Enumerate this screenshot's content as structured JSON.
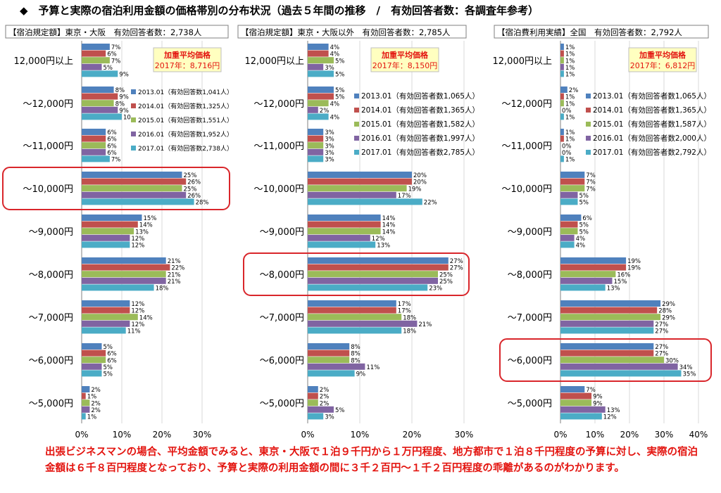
{
  "title": "◆　予算と実際の宿泊利用金額の価格帯別の分布状況（過去５年間の推移　/　有効回答者数：各調査年参考）",
  "note": "出張ビジネスマンの場合、平均金額でみると、東京・大阪で１泊９千円から１万円程度、地方都市で１泊８千円程度の予算に対し、実際の宿泊金額は６千８百円程度となっており、予算と実際の利用金額の間に３千２百円～１千２百円程度の乖離があるのがわかります。",
  "colors": {
    "series": [
      "#4f81bd",
      "#c0504d",
      "#9bbb59",
      "#8064a2",
      "#4bacc6"
    ],
    "highlight": "#d9262b",
    "badge_bg": "#ffffc0",
    "badge_text": "#e3140f"
  },
  "chart_data": [
    {
      "type": "bar",
      "orientation": "horizontal",
      "header": "【宿泊規定額】東京・大阪　有効回答者数：2,738人",
      "badge": {
        "line1": "加重平均価格",
        "line2": "2017年：8,716円"
      },
      "categories": [
        "12,000円以上",
        "～12,000円",
        "～11,000円",
        "～10,000円",
        "～9,000円",
        "～8,000円",
        "～7,000円",
        "～6,000円",
        "～5,000円"
      ],
      "series": [
        {
          "name": "2013.01（有効回答数1,041人）",
          "values": [
            7,
            8,
            6,
            25,
            15,
            21,
            12,
            5,
            2
          ]
        },
        {
          "name": "2014.01（有効回答数1,325人）",
          "values": [
            6,
            9,
            6,
            26,
            14,
            22,
            12,
            6,
            1
          ]
        },
        {
          "name": "2015.01（有効回答数1,551人）",
          "values": [
            7,
            8,
            6,
            25,
            13,
            21,
            14,
            6,
            2
          ]
        },
        {
          "name": "2016.01（有効回答数1,952人）",
          "values": [
            5,
            9,
            6,
            26,
            12,
            21,
            12,
            5,
            2
          ]
        },
        {
          "name": "2017.01（有効回答数2,738人）",
          "values": [
            9,
            10,
            7,
            28,
            12,
            18,
            11,
            5,
            1
          ]
        }
      ],
      "value_labels": [
        [
          "7%",
          "6%",
          "7%",
          "5%",
          "9%"
        ],
        [
          "8%",
          "9%",
          "8%",
          "9%",
          "10"
        ],
        [
          "6%",
          "6%",
          "6%",
          "6%",
          "7%"
        ],
        [
          "25%",
          "26%",
          "25%",
          "26%",
          "28%"
        ],
        [
          "15%",
          "14%",
          "13%",
          "12%",
          "12%"
        ],
        [
          "21%",
          "22%",
          "21%",
          "21%",
          "18%"
        ],
        [
          "12%",
          "12%",
          "14%",
          "12%",
          "11%"
        ],
        [
          "5%",
          "6%",
          "6%",
          "5%",
          "5%"
        ],
        [
          "2%",
          "1%",
          "2%",
          "2%",
          "1%"
        ]
      ],
      "highlight_category": "～10,000円",
      "xlim": [
        0,
        30
      ],
      "xticks": [
        "0%",
        "10%",
        "20%",
        "30%"
      ],
      "legend": "right"
    },
    {
      "type": "bar",
      "orientation": "horizontal",
      "header": "【宿泊規定額】東京・大阪以外　有効回答者数：2,785人",
      "badge": {
        "line1": "加重平均価格",
        "line2": "2017年：8,150円"
      },
      "categories": [
        "12,000円以上",
        "～12,000円",
        "～11,000円",
        "～10,000円",
        "～9,000円",
        "～8,000円",
        "～7,000円",
        "～6,000円",
        "～5,000円"
      ],
      "series": [
        {
          "name": "2013.01（有効回答者数1,065人）",
          "values": [
            4,
            5,
            3,
            20,
            14,
            27,
            17,
            8,
            2
          ]
        },
        {
          "name": "2014.01（有効回答者数1,365人）",
          "values": [
            4,
            5,
            3,
            20,
            14,
            27,
            17,
            8,
            2
          ]
        },
        {
          "name": "2015.01（有効回答者数1,582人）",
          "values": [
            5,
            4,
            3,
            19,
            14,
            25,
            18,
            8,
            2
          ]
        },
        {
          "name": "2016.01（有効回答者数1,997人）",
          "values": [
            3,
            2,
            3,
            17,
            12,
            25,
            21,
            11,
            5
          ]
        },
        {
          "name": "2017.01（有効回答者数2,785人）",
          "values": [
            5,
            4,
            3,
            22,
            13,
            23,
            18,
            9,
            3
          ]
        }
      ],
      "value_labels": [
        [
          "4%",
          "4%",
          "5%",
          "3%",
          "5%"
        ],
        [
          "5%",
          "5%",
          "4%",
          "2%",
          "4%"
        ],
        [
          "3%",
          "3%",
          "3%",
          "3%",
          "3%"
        ],
        [
          "20%",
          "20%",
          "19%",
          "17%",
          "22%"
        ],
        [
          "14%",
          "14%",
          "14%",
          "12%",
          "13%"
        ],
        [
          "27%",
          "27%",
          "25%",
          "25%",
          "23%"
        ],
        [
          "17%",
          "17%",
          "18%",
          "21%",
          "18%"
        ],
        [
          "8%",
          "8%",
          "8%",
          "11%",
          "9%"
        ],
        [
          "2%",
          "2%",
          "2%",
          "5%",
          "3%"
        ]
      ],
      "highlight_category": "～8,000円",
      "xlim": [
        0,
        30
      ],
      "xticks": [
        "0%",
        "10%",
        "20%",
        "30%"
      ],
      "legend": "right"
    },
    {
      "type": "bar",
      "orientation": "horizontal",
      "header": "【宿泊費利用実績】全国　有効回答者数：2,792人",
      "badge": {
        "line1": "加重平均価格",
        "line2": "2017年：6,812円"
      },
      "categories": [
        "12,000円以上",
        "～12,000円",
        "～11,000円",
        "～10,000円",
        "～9,000円",
        "～8,000円",
        "～7,000円",
        "～6,000円",
        "～5,000円"
      ],
      "series": [
        {
          "name": "2013.01（有効回答者数1,065人）",
          "values": [
            1,
            2,
            1,
            7,
            6,
            19,
            29,
            27,
            7
          ]
        },
        {
          "name": "2014.01（有効回答者数1,365人）",
          "values": [
            1,
            1,
            1,
            7,
            5,
            19,
            28,
            27,
            9
          ]
        },
        {
          "name": "2015.01（有効回答者数1,587人）",
          "values": [
            1,
            1,
            0,
            7,
            5,
            16,
            29,
            30,
            9
          ]
        },
        {
          "name": "2016.01（有効回答者数2,000人）",
          "values": [
            1,
            0,
            0,
            5,
            4,
            15,
            27,
            34,
            13
          ]
        },
        {
          "name": "2017.01（有効回答者数2,792人）",
          "values": [
            1,
            1,
            1,
            5,
            4,
            13,
            27,
            35,
            12
          ]
        }
      ],
      "value_labels": [
        [
          "1%",
          "1%",
          "1%",
          "1%",
          "1%"
        ],
        [
          "2%",
          "1%",
          "1%",
          "0%",
          "1%"
        ],
        [
          "1%",
          "1%",
          "0%",
          "0%",
          "1%"
        ],
        [
          "7%",
          "7%",
          "7%",
          "5%",
          "5%"
        ],
        [
          "6%",
          "5%",
          "5%",
          "4%",
          "4%"
        ],
        [
          "19%",
          "19%",
          "16%",
          "15%",
          "13%"
        ],
        [
          "29%",
          "28%",
          "29%",
          "27%",
          "27%"
        ],
        [
          "27%",
          "27%",
          "30%",
          "34%",
          "35%"
        ],
        [
          "7%",
          "9%",
          "9%",
          "13%",
          "12%"
        ]
      ],
      "highlight_category": "～6,000円",
      "xlim": [
        0,
        40
      ],
      "xticks": [
        "0%",
        "10%",
        "20%",
        "30%",
        "40%"
      ],
      "legend": "right"
    }
  ]
}
